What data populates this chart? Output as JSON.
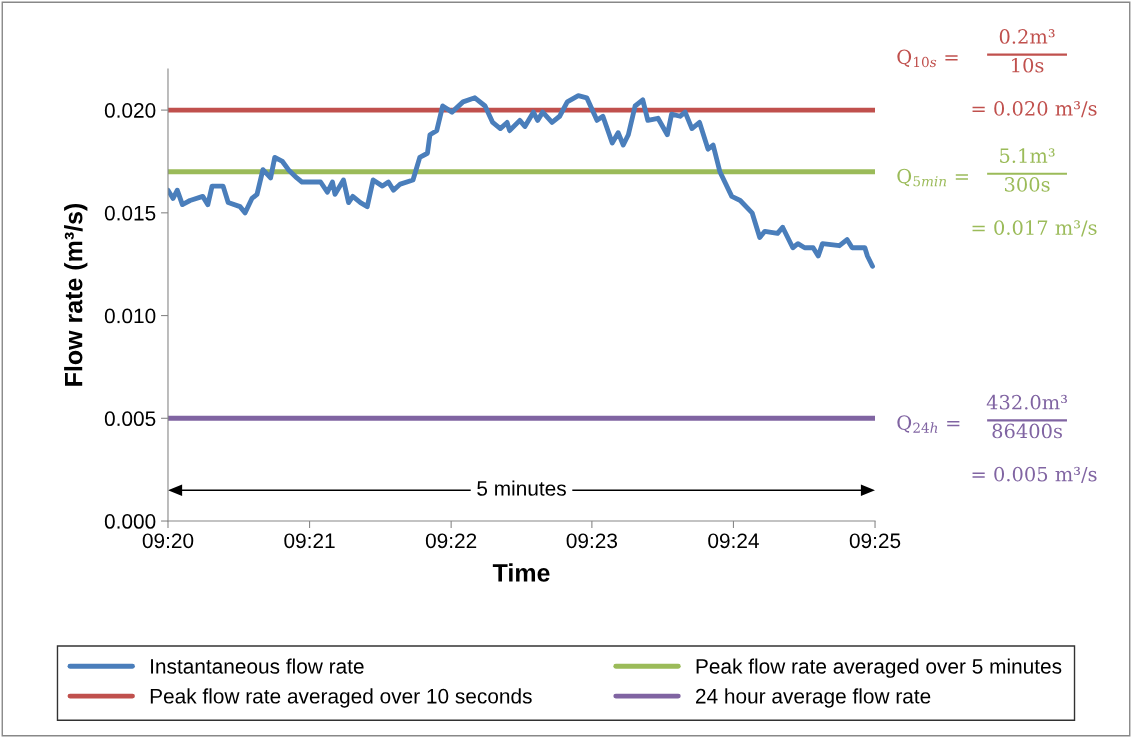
{
  "chart_data": {
    "type": "line",
    "xlabel": "Time",
    "ylabel": "Flow rate (m³/s)",
    "xlim": [
      9.3333,
      9.4167
    ],
    "ylim": [
      0,
      0.022
    ],
    "xticks": [
      {
        "value": 9.3333,
        "label": "09:20"
      },
      {
        "value": 9.35,
        "label": "09:21"
      },
      {
        "value": 9.3667,
        "label": "09:22"
      },
      {
        "value": 9.3833,
        "label": "09:23"
      },
      {
        "value": 9.4,
        "label": "09:24"
      },
      {
        "value": 9.4167,
        "label": "09:25"
      }
    ],
    "yticks": [
      {
        "value": 0,
        "label": "0.000"
      },
      {
        "value": 0.005,
        "label": "0.005"
      },
      {
        "value": 0.01,
        "label": "0.010"
      },
      {
        "value": 0.015,
        "label": "0.015"
      },
      {
        "value": 0.02,
        "label": "0.020"
      }
    ],
    "grid": false,
    "legend": "bottom",
    "marker": "none",
    "line_style": "solid",
    "series": [
      {
        "name": "Instantaneous flow rate",
        "color": "#4a7ebb",
        "x": [
          9.3333,
          9.3339,
          9.3344,
          9.335,
          9.3359,
          9.3374,
          9.338,
          9.3385,
          9.3398,
          9.3404,
          9.3418,
          9.3424,
          9.3432,
          9.3438,
          9.3445,
          9.3454,
          9.3459,
          9.3468,
          9.3475,
          9.3485,
          9.3491,
          9.3513,
          9.3521,
          9.3527,
          9.353,
          9.354,
          9.3546,
          9.3551,
          9.356,
          9.3568,
          9.3575,
          9.3586,
          9.3593,
          9.3599,
          9.3607,
          9.3622,
          9.363,
          9.3639,
          9.3642,
          9.365,
          9.3657,
          9.3668,
          9.3681,
          9.3695,
          9.3707,
          9.3716,
          9.3725,
          9.3733,
          9.3736,
          9.3748,
          9.3754,
          9.3764,
          9.3769,
          9.3775,
          9.3786,
          9.3795,
          9.3804,
          9.3817,
          9.3827,
          9.3839,
          9.3846,
          9.3857,
          9.3864,
          9.387,
          9.3876,
          9.3884,
          9.3893,
          9.3899,
          9.3911,
          9.3922,
          9.3927,
          9.3937,
          9.3943,
          9.3951,
          9.396,
          9.397,
          9.3976,
          9.3984,
          9.3998,
          9.4008,
          9.4022,
          9.4031,
          9.4037,
          9.4052,
          9.4058,
          9.407,
          9.4076,
          9.4084,
          9.4094,
          9.41,
          9.4105,
          9.4125,
          9.4134,
          9.414,
          9.4155,
          9.4158,
          9.4164
        ],
        "values": [
          0.0161,
          0.0157,
          0.0161,
          0.0154,
          0.0156,
          0.0158,
          0.0154,
          0.0163,
          0.0163,
          0.0155,
          0.0153,
          0.015,
          0.0157,
          0.0159,
          0.0171,
          0.0167,
          0.0177,
          0.0175,
          0.0171,
          0.0167,
          0.0165,
          0.0165,
          0.016,
          0.0165,
          0.0159,
          0.0166,
          0.0155,
          0.0158,
          0.0155,
          0.0153,
          0.0166,
          0.0163,
          0.0165,
          0.0161,
          0.0164,
          0.0166,
          0.0177,
          0.0179,
          0.0188,
          0.019,
          0.0202,
          0.0199,
          0.0204,
          0.0206,
          0.0202,
          0.0194,
          0.0191,
          0.0194,
          0.019,
          0.0195,
          0.0192,
          0.0199,
          0.0195,
          0.0199,
          0.0194,
          0.0197,
          0.0204,
          0.0207,
          0.0206,
          0.0195,
          0.0197,
          0.0184,
          0.0189,
          0.0183,
          0.0188,
          0.0202,
          0.0205,
          0.0195,
          0.0196,
          0.0188,
          0.0198,
          0.0197,
          0.0199,
          0.0191,
          0.0194,
          0.0181,
          0.0183,
          0.017,
          0.0158,
          0.0156,
          0.015,
          0.0138,
          0.0141,
          0.014,
          0.0143,
          0.0133,
          0.0135,
          0.0133,
          0.0133,
          0.0129,
          0.0135,
          0.0134,
          0.0137,
          0.0133,
          0.0133,
          0.0129,
          0.0124
        ]
      },
      {
        "name": "Peak flow rate averaged over 10 seconds",
        "color": "#c0504d",
        "x": [
          9.3333,
          9.4167
        ],
        "values": [
          0.02,
          0.02
        ]
      },
      {
        "name": "Peak flow rate averaged over 5 minutes",
        "color": "#9bbb59",
        "x": [
          9.3333,
          9.4167
        ],
        "values": [
          0.017,
          0.017
        ]
      },
      {
        "name": "24 hour average flow rate",
        "color": "#8064a2",
        "x": [
          9.3333,
          9.4167
        ],
        "values": [
          0.005,
          0.005
        ]
      }
    ],
    "annotations": [
      "Q$_{10s}$ =",
      "0.2m³",
      "10s",
      "= 0.020 m³/s",
      "Q$_{5min}$ =",
      "5.1m³",
      "300s",
      "= 0.017 m³/s",
      "Q$_{24h}$ =",
      "432.0m³",
      "86400s",
      "= 0.005 m³/s",
      "5 minutes"
    ]
  }
}
